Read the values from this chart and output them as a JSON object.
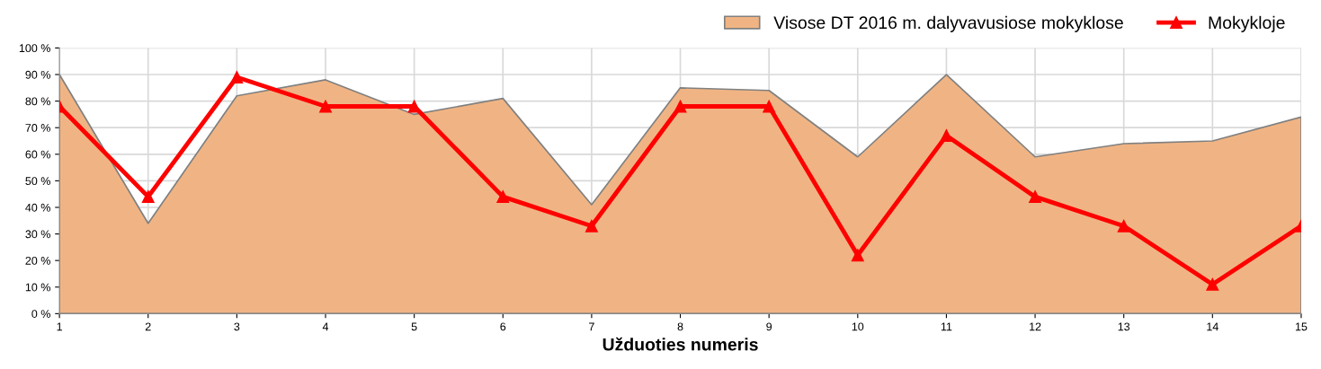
{
  "chart_data": {
    "type": "area",
    "xlabel": "Užduoties numeris",
    "categories": [
      "1",
      "2",
      "3",
      "4",
      "5",
      "6",
      "7",
      "8",
      "9",
      "10",
      "11",
      "12",
      "13",
      "14",
      "15"
    ],
    "series": [
      {
        "name": "Visose DT 2016 m. dalyvavusiose mokyklose",
        "color": "#f0b484",
        "values": [
          90,
          34,
          82,
          88,
          75,
          81,
          41,
          85,
          84,
          59,
          90,
          59,
          64,
          65,
          74
        ]
      },
      {
        "name": "Mokykloje",
        "type": "line",
        "color": "#ff0000",
        "marker": "triangle",
        "values": [
          78,
          44,
          89,
          78,
          78,
          44,
          33,
          78,
          78,
          22,
          67,
          44,
          33,
          11,
          33
        ]
      }
    ],
    "ylim": [
      0,
      100
    ],
    "yticks": [
      {
        "value": 0,
        "label": "0 %"
      },
      {
        "value": 10,
        "label": "10 %"
      },
      {
        "value": 20,
        "label": "20 %"
      },
      {
        "value": 30,
        "label": "30 %"
      },
      {
        "value": 40,
        "label": "40 %"
      },
      {
        "value": 50,
        "label": "50 %"
      },
      {
        "value": 60,
        "label": "60 %"
      },
      {
        "value": 70,
        "label": "70 %"
      },
      {
        "value": 80,
        "label": "80 %"
      },
      {
        "value": 90,
        "label": "90 %"
      },
      {
        "value": 100,
        "label": "100 %"
      }
    ],
    "grid": true,
    "legend": "top right"
  }
}
